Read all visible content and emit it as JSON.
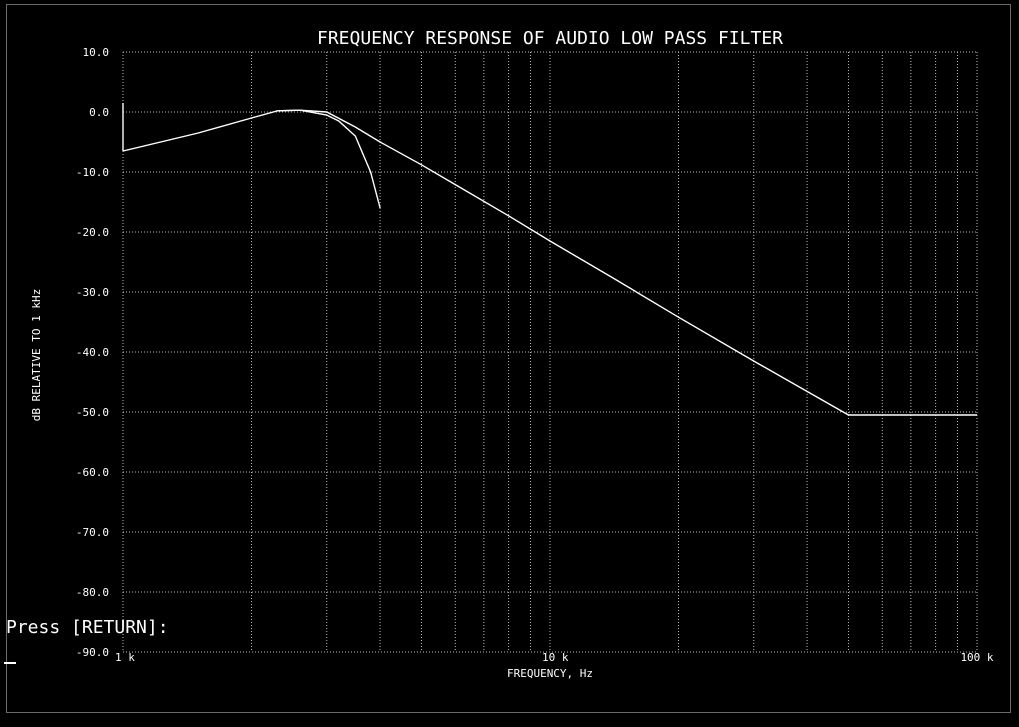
{
  "terminal": {
    "prompt": "Press [RETURN]:"
  },
  "chart_data": {
    "type": "line",
    "title": "FREQUENCY RESPONSE OF AUDIO LOW PASS FILTER",
    "xlabel": "FREQUENCY, Hz",
    "ylabel": "dB RELATIVE TO 1 kHz",
    "xscale": "log",
    "xlim": [
      1000,
      100000
    ],
    "ylim": [
      -90,
      10
    ],
    "grid": true,
    "grid_style": "dotted",
    "x_ticks": [
      {
        "value": 1000,
        "label": "1 k"
      },
      {
        "value": 10000,
        "label": "10 k"
      },
      {
        "value": 100000,
        "label": "100 k"
      }
    ],
    "y_ticks": [
      {
        "value": 10,
        "label": "10.0"
      },
      {
        "value": 0,
        "label": "0.0"
      },
      {
        "value": -10,
        "label": "-10.0"
      },
      {
        "value": -20,
        "label": "-20.0"
      },
      {
        "value": -30,
        "label": "-30.0"
      },
      {
        "value": -40,
        "label": "-40.0"
      },
      {
        "value": -50,
        "label": "-50.0"
      },
      {
        "value": -60,
        "label": "-60.0"
      },
      {
        "value": -70,
        "label": "-70.0"
      },
      {
        "value": -80,
        "label": "-80.0"
      },
      {
        "value": -90,
        "label": "-90.0"
      }
    ],
    "series": [
      {
        "x": [
          1000,
          1500,
          2000,
          2300,
          2600,
          3000,
          3500,
          4000,
          5000,
          6000,
          8000,
          10000,
          14000,
          20000,
          30000,
          50000,
          100000
        ],
        "y": [
          -6.5,
          -3.5,
          -1.0,
          0.2,
          0.3,
          0.0,
          -2.5,
          -5.0,
          -8.8,
          -12.1,
          -17.3,
          -21.5,
          -27.6,
          -34.2,
          -41.5,
          -50.5,
          -50.5
        ],
        "color": "#ffffff"
      },
      {
        "x": [
          2300,
          2600,
          3000,
          3200,
          3500,
          3800,
          4000
        ],
        "y": [
          0.2,
          0.3,
          -0.5,
          -1.5,
          -4.0,
          -10.0,
          -16.0
        ],
        "color": "#ffffff"
      },
      {
        "x": [
          1000,
          1000
        ],
        "y": [
          -6.5,
          1.5
        ],
        "color": "#ffffff"
      }
    ]
  }
}
